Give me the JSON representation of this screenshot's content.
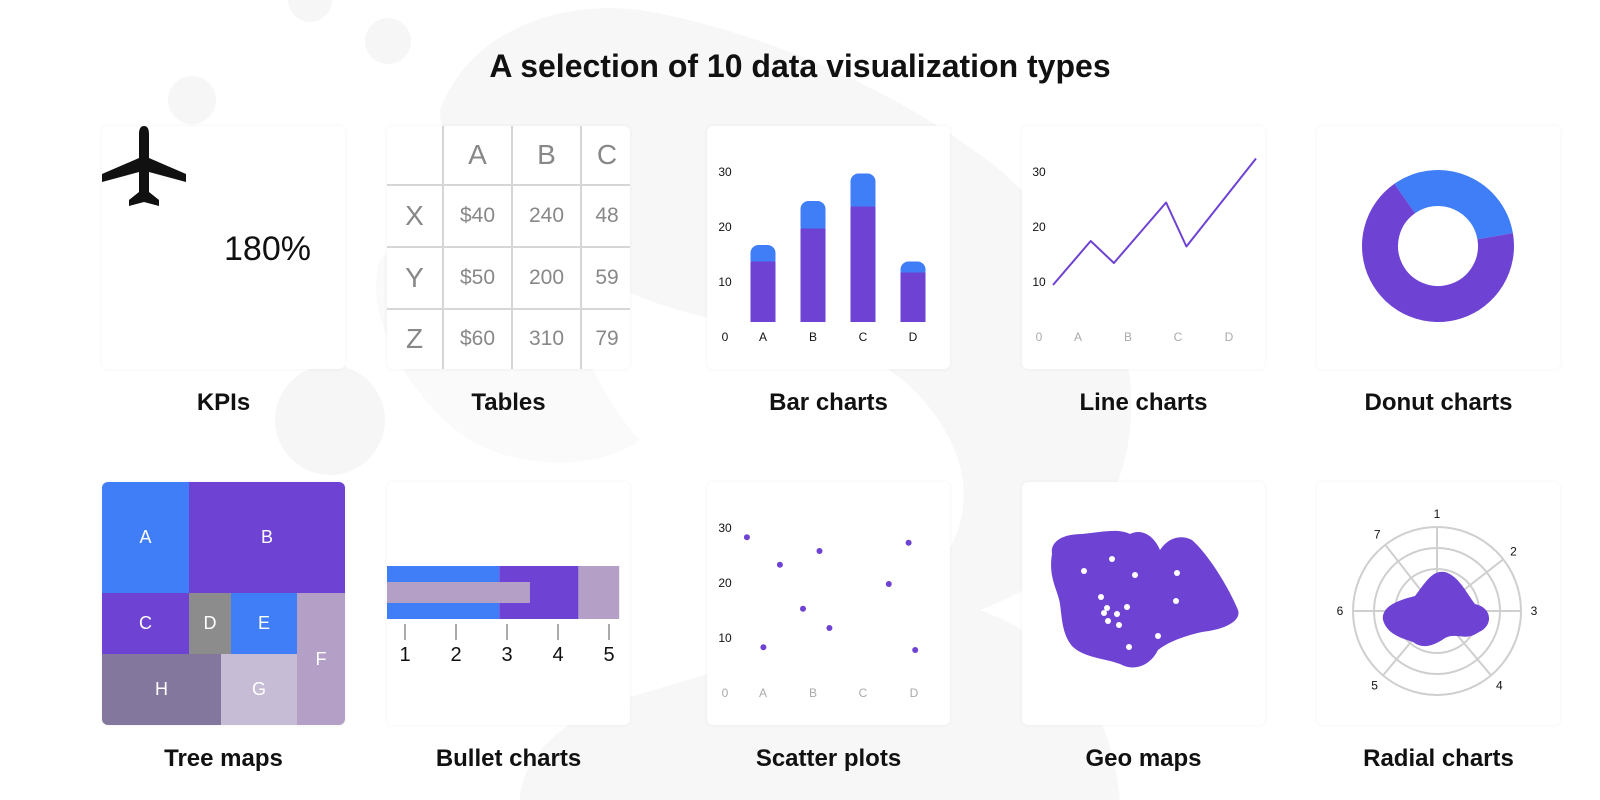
{
  "title": "A selection of 10 data visualization types",
  "colors": {
    "purple": "#6e42d3",
    "blue": "#3f7ef7",
    "gray": "#8c8c8c",
    "mauve": "#b4a0c6",
    "dark_mauve": "#84779e",
    "light_mauve": "#c6bcd6",
    "background_blob": "#f5f5f5"
  },
  "kpi": {
    "icon": "airplane-icon",
    "value": "180%",
    "caption": "KPIs"
  },
  "table": {
    "caption": "Tables",
    "columns": [
      "",
      "A",
      "B",
      "C"
    ],
    "rows": [
      {
        "label": "X",
        "cells": [
          "$40",
          "240",
          "48"
        ]
      },
      {
        "label": "Y",
        "cells": [
          "$50",
          "200",
          "59"
        ]
      },
      {
        "label": "Z",
        "cells": [
          "$60",
          "310",
          "79"
        ]
      }
    ]
  },
  "chart_data": [
    {
      "type": "bar",
      "caption": "Bar charts",
      "categories": [
        "A",
        "B",
        "C",
        "D"
      ],
      "series": [
        {
          "values": [
            11,
            17,
            21,
            9
          ]
        },
        {
          "values": [
            3,
            5,
            6,
            2
          ]
        }
      ],
      "stacked": true,
      "yticks": [
        "0",
        "10",
        "20",
        "30"
      ],
      "ylim": [
        0,
        30
      ]
    },
    {
      "type": "line",
      "caption": "Line charts",
      "x": [
        0,
        0.65,
        1.05,
        1.95,
        2.3,
        3.5
      ],
      "y": [
        10,
        18,
        14,
        25,
        17,
        33
      ],
      "categories": [
        "A",
        "B",
        "C",
        "D"
      ],
      "yticks": [
        "0",
        "10",
        "20",
        "30"
      ],
      "ylim": [
        0,
        30
      ]
    },
    {
      "type": "pie",
      "caption": "Donut charts",
      "donut": true,
      "values": [
        32,
        68
      ]
    },
    {
      "type": "heatmap",
      "caption": "Tree maps",
      "labels": [
        "A",
        "B",
        "C",
        "D",
        "E",
        "F",
        "G",
        "H"
      ]
    },
    {
      "type": "bar",
      "caption": "Bullet charts",
      "orientation": "horizontal",
      "ticks": [
        "1",
        "2",
        "3",
        "4",
        "5"
      ],
      "range_values": [
        2.85,
        4.4,
        5.2
      ],
      "measure": 3.45
    },
    {
      "type": "scatter",
      "caption": "Scatter plots",
      "categories": [
        "A",
        "B",
        "C",
        "D"
      ],
      "yticks": [
        "0",
        "10",
        "20",
        "30"
      ],
      "ylim": [
        0,
        30
      ],
      "points": [
        [
          0.15,
          28.5
        ],
        [
          0.4,
          8.5
        ],
        [
          0.65,
          23.5
        ],
        [
          1.0,
          15.5
        ],
        [
          1.25,
          26
        ],
        [
          1.4,
          12
        ],
        [
          2.3,
          20
        ],
        [
          2.6,
          27.5
        ],
        [
          2.7,
          8
        ]
      ]
    },
    {
      "type": "radar",
      "caption": "Radial charts",
      "axes": [
        "1",
        "2",
        "3",
        "4",
        "5",
        "6",
        "7"
      ],
      "rings": 4
    }
  ],
  "geo": {
    "caption": "Geo maps"
  }
}
